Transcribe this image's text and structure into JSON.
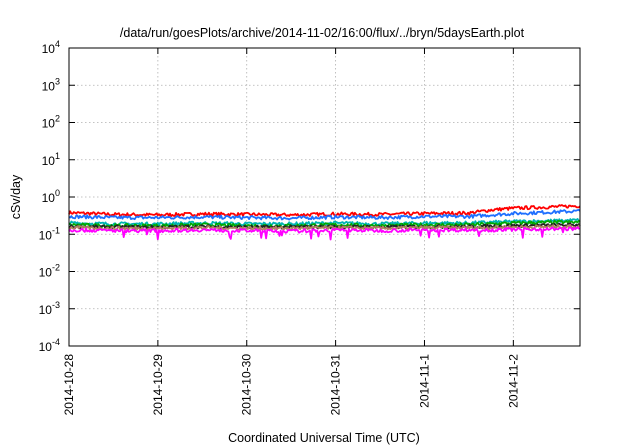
{
  "chart_data": {
    "type": "line",
    "title": "/data/run/goesPlots/archive/2014-11-02/16:00/flux/../bryn/5daysEarth.plot",
    "xlabel": "Coordinated Universal Time (UTC)",
    "ylabel": "cSv/day",
    "yscale": "log",
    "ylim": [
      0.0001,
      10000
    ],
    "y_ticks": [
      {
        "base": "10",
        "exp": "4"
      },
      {
        "base": "10",
        "exp": "3"
      },
      {
        "base": "10",
        "exp": "2"
      },
      {
        "base": "10",
        "exp": "1"
      },
      {
        "base": "10",
        "exp": "0"
      },
      {
        "base": "10",
        "exp": "-1"
      },
      {
        "base": "10",
        "exp": "-2"
      },
      {
        "base": "10",
        "exp": "-3"
      },
      {
        "base": "10",
        "exp": "-4"
      }
    ],
    "x_ticks": [
      "2014-10-28",
      "2014-10-29",
      "2014-10-30",
      "2014-10-31",
      "2014-11-1",
      "2014-11-2"
    ],
    "xlim": [
      "2014-10-28",
      "2014-11-02T18:00"
    ],
    "grid": true,
    "series": [
      {
        "color": "#ff0000",
        "x": [
          "2014-10-28",
          "2014-10-28T12:00",
          "2014-10-29",
          "2014-10-29T12:00",
          "2014-10-30",
          "2014-10-30T12:00",
          "2014-10-31",
          "2014-10-31T12:00",
          "2014-11-01",
          "2014-11-01T12:00",
          "2014-11-01T18:00",
          "2014-11-02",
          "2014-11-02T12:00",
          "2014-11-02T18:00"
        ],
        "values": [
          0.38,
          0.34,
          0.33,
          0.35,
          0.34,
          0.33,
          0.35,
          0.34,
          0.36,
          0.37,
          0.45,
          0.5,
          0.55,
          0.58
        ]
      },
      {
        "color": "#1e6fff",
        "x": [
          "2014-10-28",
          "2014-10-28T12:00",
          "2014-10-29",
          "2014-10-29T12:00",
          "2014-10-30",
          "2014-10-30T12:00",
          "2014-10-31",
          "2014-10-31T12:00",
          "2014-11-01",
          "2014-11-01T12:00",
          "2014-11-01T18:00",
          "2014-11-02",
          "2014-11-02T12:00",
          "2014-11-02T18:00"
        ],
        "values": [
          0.3,
          0.28,
          0.28,
          0.29,
          0.28,
          0.27,
          0.29,
          0.28,
          0.3,
          0.3,
          0.33,
          0.36,
          0.4,
          0.42
        ]
      },
      {
        "color": "#00b4b4",
        "x": [
          "2014-10-28",
          "2014-10-28T12:00",
          "2014-10-29",
          "2014-10-29T12:00",
          "2014-10-30",
          "2014-10-30T12:00",
          "2014-10-31",
          "2014-10-31T12:00",
          "2014-11-01",
          "2014-11-01T12:00",
          "2014-11-01T18:00",
          "2014-11-02",
          "2014-11-02T12:00",
          "2014-11-02T18:00"
        ],
        "values": [
          0.2,
          0.19,
          0.19,
          0.2,
          0.19,
          0.19,
          0.2,
          0.19,
          0.2,
          0.2,
          0.21,
          0.22,
          0.23,
          0.24
        ]
      },
      {
        "color": "#00aa00",
        "x": [
          "2014-10-28",
          "2014-10-28T12:00",
          "2014-10-29",
          "2014-10-29T12:00",
          "2014-10-30",
          "2014-10-30T12:00",
          "2014-10-31",
          "2014-10-31T12:00",
          "2014-11-01",
          "2014-11-01T12:00",
          "2014-11-01T18:00",
          "2014-11-02",
          "2014-11-02T12:00",
          "2014-11-02T18:00"
        ],
        "values": [
          0.18,
          0.17,
          0.17,
          0.18,
          0.17,
          0.17,
          0.18,
          0.17,
          0.18,
          0.18,
          0.19,
          0.2,
          0.21,
          0.21
        ]
      },
      {
        "color": "#222222",
        "x": [
          "2014-10-28",
          "2014-10-28T12:00",
          "2014-10-29",
          "2014-10-29T12:00",
          "2014-10-30",
          "2014-10-30T12:00",
          "2014-10-31",
          "2014-10-31T12:00",
          "2014-11-01",
          "2014-11-01T12:00",
          "2014-11-01T18:00",
          "2014-11-02",
          "2014-11-02T12:00",
          "2014-11-02T18:00"
        ],
        "values": [
          0.16,
          0.155,
          0.155,
          0.16,
          0.155,
          0.155,
          0.16,
          0.155,
          0.16,
          0.16,
          0.165,
          0.17,
          0.175,
          0.18
        ]
      },
      {
        "color": "#b08060",
        "x": [
          "2014-10-28",
          "2014-10-28T12:00",
          "2014-10-29",
          "2014-10-29T12:00",
          "2014-10-30",
          "2014-10-30T12:00",
          "2014-10-31",
          "2014-10-31T12:00",
          "2014-11-01",
          "2014-11-01T12:00",
          "2014-11-01T18:00",
          "2014-11-02",
          "2014-11-02T12:00",
          "2014-11-02T18:00"
        ],
        "values": [
          0.15,
          0.145,
          0.145,
          0.15,
          0.145,
          0.145,
          0.15,
          0.145,
          0.15,
          0.15,
          0.152,
          0.155,
          0.16,
          0.162
        ]
      },
      {
        "color": "#ff00ff",
        "x": [
          "2014-10-28",
          "2014-10-28T12:00",
          "2014-10-29",
          "2014-10-29T12:00",
          "2014-10-30",
          "2014-10-30T12:00",
          "2014-10-31",
          "2014-10-31T12:00",
          "2014-11-01",
          "2014-11-01T12:00",
          "2014-11-01T18:00",
          "2014-11-02",
          "2014-11-02T12:00",
          "2014-11-02T18:00"
        ],
        "values": [
          0.13,
          0.125,
          0.125,
          0.13,
          0.125,
          0.12,
          0.13,
          0.125,
          0.13,
          0.13,
          0.13,
          0.135,
          0.14,
          0.14
        ]
      }
    ]
  }
}
